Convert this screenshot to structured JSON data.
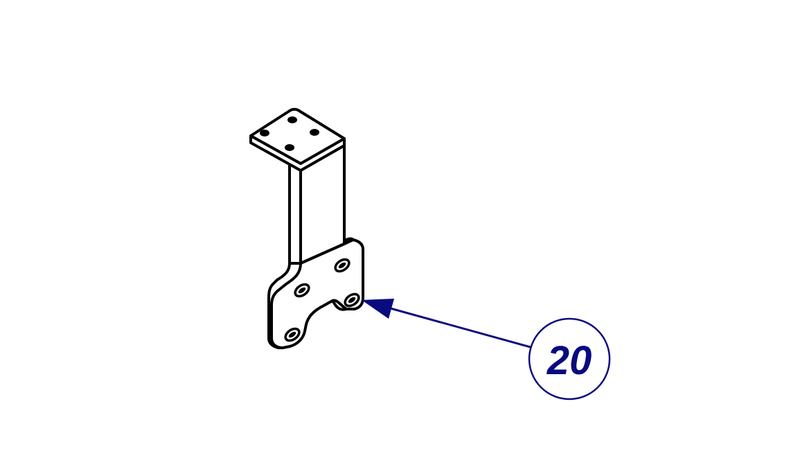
{
  "callout": {
    "number": "20",
    "color": "#0a0a80"
  },
  "part": {
    "icon": "bracket-part-drawing",
    "line_color": "#000000"
  }
}
